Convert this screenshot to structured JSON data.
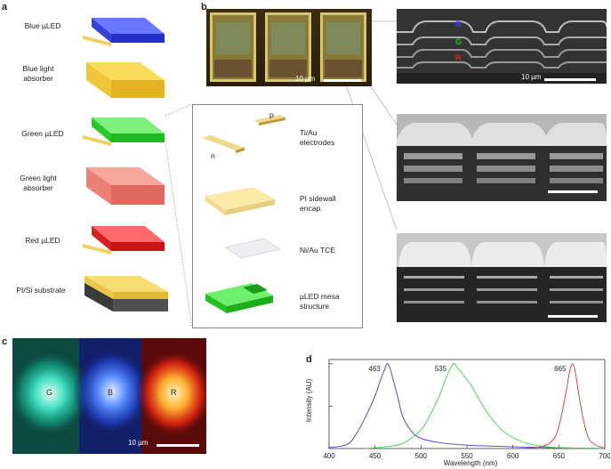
{
  "panels": {
    "a": "a",
    "b": "b",
    "c": "c",
    "d": "d"
  },
  "panel_a": {
    "layers": [
      {
        "label": "Blue µLED",
        "color": "#2f3fe0"
      },
      {
        "label": "Blue light absorber",
        "color": "#f3cc3a"
      },
      {
        "label": "Green µLED",
        "color": "#36d93a"
      },
      {
        "label": "Green light absorber",
        "color": "#f08a80"
      },
      {
        "label": "Red µLED",
        "color": "#ee2a2a"
      },
      {
        "label": "PI/Si substrate",
        "color": "#f0cf55"
      }
    ],
    "inset": {
      "p_label": "p",
      "n_label": "n",
      "items": [
        {
          "label": "Ti/Au electrodes"
        },
        {
          "label": "PI sidewall encap."
        },
        {
          "label": "Ni/Au TCE"
        },
        {
          "label": "µLED mesa structure"
        }
      ]
    }
  },
  "panel_b": {
    "scale_optical": "10 µm",
    "scale_sem": "10 µm",
    "layer_letters": [
      "B",
      "G",
      "R"
    ],
    "layer_colors": [
      "#3a3aff",
      "#2ebd2e",
      "#e02020"
    ]
  },
  "panel_c": {
    "pixels": [
      "G",
      "B",
      "R"
    ],
    "scale": "10 µm"
  },
  "chart_data": {
    "type": "line",
    "xlabel": "Wavelength (nm)",
    "ylabel": "Intensity (AU)",
    "xlim": [
      400,
      700
    ],
    "xticks": [
      400,
      450,
      500,
      550,
      600,
      650,
      700
    ],
    "ylim": [
      0,
      1.05
    ],
    "series": [
      {
        "color": "#3b3fc0",
        "peak_label": "463",
        "x": [
          400,
          420,
          430,
          440,
          450,
          455,
          460,
          463,
          466,
          470,
          475,
          480,
          490,
          500,
          520,
          550,
          600,
          650,
          700
        ],
        "y": [
          0.01,
          0.05,
          0.18,
          0.38,
          0.62,
          0.78,
          0.92,
          1.0,
          0.96,
          0.8,
          0.6,
          0.38,
          0.2,
          0.12,
          0.07,
          0.04,
          0.02,
          0.01,
          0.0
        ]
      },
      {
        "color": "#3fd13f",
        "peak_label": "535",
        "x": [
          440,
          460,
          480,
          500,
          510,
          520,
          528,
          535,
          540,
          548,
          555,
          565,
          575,
          590,
          610,
          630,
          650,
          700
        ],
        "y": [
          0.0,
          0.02,
          0.06,
          0.22,
          0.4,
          0.62,
          0.85,
          1.0,
          0.95,
          0.84,
          0.74,
          0.55,
          0.38,
          0.2,
          0.08,
          0.03,
          0.01,
          0.0
        ]
      },
      {
        "color": "#c0403a",
        "peak_label": "665",
        "x": [
          600,
          630,
          645,
          652,
          658,
          662,
          665,
          668,
          672,
          678,
          685,
          700
        ],
        "y": [
          0.0,
          0.02,
          0.12,
          0.35,
          0.68,
          0.92,
          1.0,
          0.9,
          0.62,
          0.28,
          0.08,
          0.0
        ]
      }
    ]
  }
}
